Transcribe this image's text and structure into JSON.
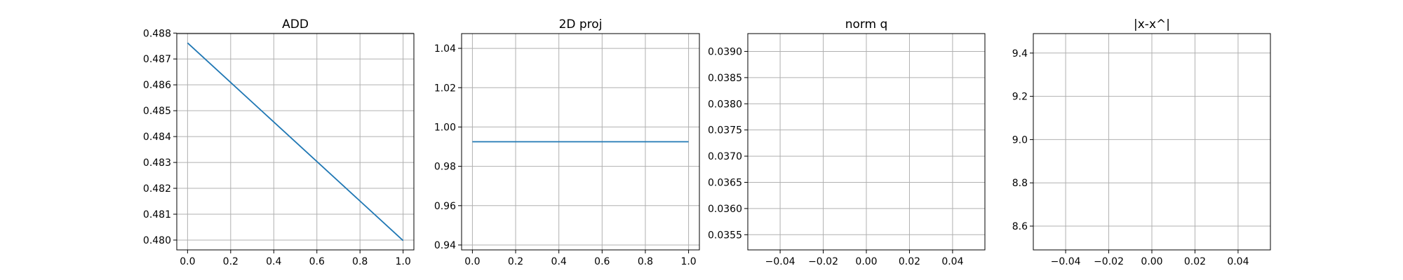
{
  "chart_data": [
    {
      "type": "line",
      "title": "ADD",
      "xlabel": "",
      "ylabel": "",
      "xlim": [
        -0.05,
        1.05
      ],
      "ylim": [
        0.47962,
        0.48798
      ],
      "xticks": [
        0.0,
        0.2,
        0.4,
        0.6,
        0.8,
        1.0
      ],
      "xtick_labels": [
        "0.0",
        "0.2",
        "0.4",
        "0.6",
        "0.8",
        "1.0"
      ],
      "yticks": [
        0.48,
        0.481,
        0.482,
        0.483,
        0.484,
        0.485,
        0.486,
        0.487,
        0.488
      ],
      "ytick_labels": [
        "0.480",
        "0.481",
        "0.482",
        "0.483",
        "0.484",
        "0.485",
        "0.486",
        "0.487",
        "0.488"
      ],
      "grid": true,
      "series": [
        {
          "x": [
            0.0,
            1.0
          ],
          "y": [
            0.48762,
            0.47998
          ],
          "color": "#1f77b4"
        }
      ]
    },
    {
      "type": "line",
      "title": "2D proj",
      "xlabel": "",
      "ylabel": "",
      "xlim": [
        -0.05,
        1.05
      ],
      "ylim": [
        0.9375,
        1.0475
      ],
      "xticks": [
        0.0,
        0.2,
        0.4,
        0.6,
        0.8,
        1.0
      ],
      "xtick_labels": [
        "0.0",
        "0.2",
        "0.4",
        "0.6",
        "0.8",
        "1.0"
      ],
      "yticks": [
        0.94,
        0.96,
        0.98,
        1.0,
        1.02,
        1.04
      ],
      "ytick_labels": [
        "0.94",
        "0.96",
        "0.98",
        "1.00",
        "1.02",
        "1.04"
      ],
      "grid": true,
      "series": [
        {
          "x": [
            0.0,
            1.0
          ],
          "y": [
            0.9925,
            0.9925
          ],
          "color": "#1f77b4"
        }
      ]
    },
    {
      "type": "line",
      "title": "norm q",
      "xlabel": "",
      "ylabel": "",
      "xlim": [
        -0.055,
        0.055
      ],
      "ylim": [
        0.03521,
        0.03934
      ],
      "xticks": [
        -0.04,
        -0.02,
        0.0,
        0.02,
        0.04
      ],
      "xtick_labels": [
        "−0.04",
        "−0.02",
        "0.00",
        "0.02",
        "0.04"
      ],
      "yticks": [
        0.0355,
        0.036,
        0.0365,
        0.037,
        0.0375,
        0.038,
        0.0385,
        0.039
      ],
      "ytick_labels": [
        "0.0355",
        "0.0360",
        "0.0365",
        "0.0370",
        "0.0375",
        "0.0380",
        "0.0385",
        "0.0390"
      ],
      "grid": true,
      "series": []
    },
    {
      "type": "line",
      "title": "|x-x^|",
      "xlabel": "",
      "ylabel": "",
      "xlim": [
        -0.055,
        0.055
      ],
      "ylim": [
        8.49,
        9.49
      ],
      "xticks": [
        -0.04,
        -0.02,
        0.0,
        0.02,
        0.04
      ],
      "xtick_labels": [
        "−0.04",
        "−0.02",
        "0.00",
        "0.02",
        "0.04"
      ],
      "yticks": [
        8.6,
        8.8,
        9.0,
        9.2,
        9.4
      ],
      "ytick_labels": [
        "8.6",
        "8.8",
        "9.0",
        "9.2",
        "9.4"
      ],
      "grid": true,
      "series": []
    }
  ]
}
